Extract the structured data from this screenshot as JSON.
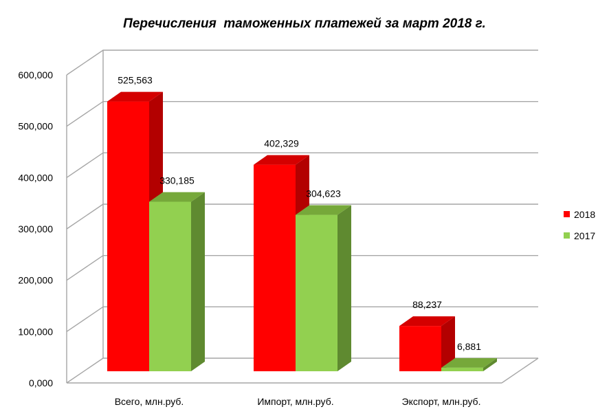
{
  "chart_data": {
    "type": "bar",
    "title": "Перечисления  таможенных платежей за март 2018 г.",
    "categories": [
      "Всего, млн.руб.",
      "Импорт, млн.руб.",
      "Экспорт, млн.руб."
    ],
    "series": [
      {
        "name": "2018",
        "values": [
          525.563,
          402.329,
          88.237
        ],
        "labels": [
          "525,563",
          "402,329",
          "88,237"
        ],
        "color": "#ff0000",
        "side_color": "#b30000",
        "top_color": "#d40000"
      },
      {
        "name": "2017",
        "values": [
          330.185,
          304.623,
          6.881
        ],
        "labels": [
          "330,185",
          "304,623",
          "6,881"
        ],
        "color": "#92d050",
        "side_color": "#5f8a30",
        "top_color": "#76a83a"
      }
    ],
    "ylim": [
      0,
      600
    ],
    "yticks": [
      0,
      100,
      200,
      300,
      400,
      500,
      600
    ],
    "ytick_labels": [
      "0,000",
      "100,000",
      "200,000",
      "300,000",
      "400,000",
      "500,000",
      "600,000"
    ],
    "grid": true,
    "legend_position": "right",
    "three_d": true
  }
}
